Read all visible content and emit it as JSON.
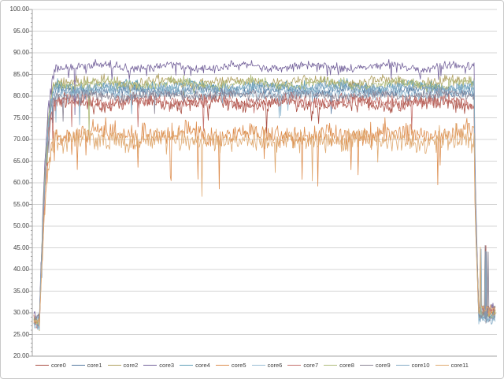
{
  "chart_data": {
    "type": "line",
    "title": "",
    "xlabel": "",
    "ylabel": "",
    "ylim": [
      20,
      100
    ],
    "ytick_step": 5,
    "ytick_labels": [
      "100.00",
      "95.00",
      "90.00",
      "85.00",
      "80.00",
      "75.00",
      "70.00",
      "65.00",
      "60.00",
      "55.00",
      "50.00",
      "45.00",
      "40.00",
      "35.00",
      "30.00",
      "25.00",
      "20.00"
    ],
    "x_tick_labels": [],
    "grid": "horizontal-major",
    "minor_tick_step": 1,
    "legend_position": "bottom-center",
    "samples": 586,
    "description": "12 CPU core readings over time: idle near 27-30 at start, fast ramp up, long noisy steady plateau, sharp drop back to ~30 near the end with small rebound spikes.",
    "phases": {
      "idle_start_pct": 1.2,
      "ramp_end_pct": 5.0,
      "steady_end_pct": 95.4,
      "plunge_end_pct": 96.4,
      "rebound_spike_value": 43,
      "unstable_early_pct": 12
    },
    "series": [
      {
        "name": "core0",
        "color": "#A94E43",
        "start": 28.5,
        "steady": 78.3,
        "noise": 1.7,
        "dip_prob": 0.01,
        "dip_depth": 4.5,
        "end": 30.0
      },
      {
        "name": "core1",
        "color": "#53779F",
        "start": 28.0,
        "steady": 81.3,
        "noise": 1.3,
        "dip_prob": 0.004,
        "dip_depth": 5.0,
        "end": 29.5
      },
      {
        "name": "core2",
        "color": "#B0A060",
        "start": 27.5,
        "steady": 83.3,
        "noise": 1.2,
        "dip_prob": 0.003,
        "dip_depth": 4.0,
        "end": 30.5
      },
      {
        "name": "core3",
        "color": "#74629B",
        "start": 29.0,
        "steady": 86.8,
        "noise": 1.0,
        "dip_prob": 0.05,
        "dip_depth": 1.8,
        "end": 31.0
      },
      {
        "name": "core4",
        "color": "#5F9EB8",
        "start": 27.0,
        "steady": 82.2,
        "noise": 1.3,
        "dip_prob": 0.004,
        "dip_depth": 5.0,
        "end": 29.0
      },
      {
        "name": "core5",
        "color": "#DD8D4E",
        "start": 28.0,
        "steady": 71.3,
        "noise": 2.6,
        "dip_prob": 0.012,
        "dip_depth": 8.0,
        "end": 30.0
      },
      {
        "name": "core6",
        "color": "#98BDD4",
        "start": 28.5,
        "steady": 80.6,
        "noise": 1.3,
        "dip_prob": 0.004,
        "dip_depth": 4.5,
        "end": 28.5
      },
      {
        "name": "core7",
        "color": "#C4716C",
        "start": 27.5,
        "steady": 78.8,
        "noise": 1.7,
        "dip_prob": 0.01,
        "dip_depth": 4.5,
        "end": 30.5
      },
      {
        "name": "core8",
        "color": "#AEBB7A",
        "start": 28.0,
        "steady": 82.8,
        "noise": 1.2,
        "dip_prob": 0.003,
        "dip_depth": 4.0,
        "end": 29.5
      },
      {
        "name": "core9",
        "color": "#8A8494",
        "start": 29.0,
        "steady": 80.2,
        "noise": 1.2,
        "dip_prob": 0.004,
        "dip_depth": 4.0,
        "end": 29.0
      },
      {
        "name": "core10",
        "color": "#86ACC6",
        "start": 27.0,
        "steady": 81.8,
        "noise": 1.3,
        "dip_prob": 0.004,
        "dip_depth": 4.5,
        "end": 28.5
      },
      {
        "name": "core11",
        "color": "#DFA970",
        "start": 28.0,
        "steady": 69.8,
        "noise": 2.6,
        "dip_prob": 0.012,
        "dip_depth": 8.0,
        "end": 31.0
      }
    ]
  },
  "legend": {
    "items": [
      "core0",
      "core1",
      "core2",
      "core3",
      "core4",
      "core5",
      "core6",
      "core7",
      "core8",
      "core9",
      "core10",
      "core11"
    ]
  },
  "style_colors": {
    "gridline": "#d4d4d4",
    "axis_line": "#a3a3a3",
    "tick_mark": "#a3a3a3",
    "label_text": "#3f3f3f",
    "legend_text": "#404040",
    "frame_border": "#c9c9c9",
    "background": "#ffffff"
  }
}
